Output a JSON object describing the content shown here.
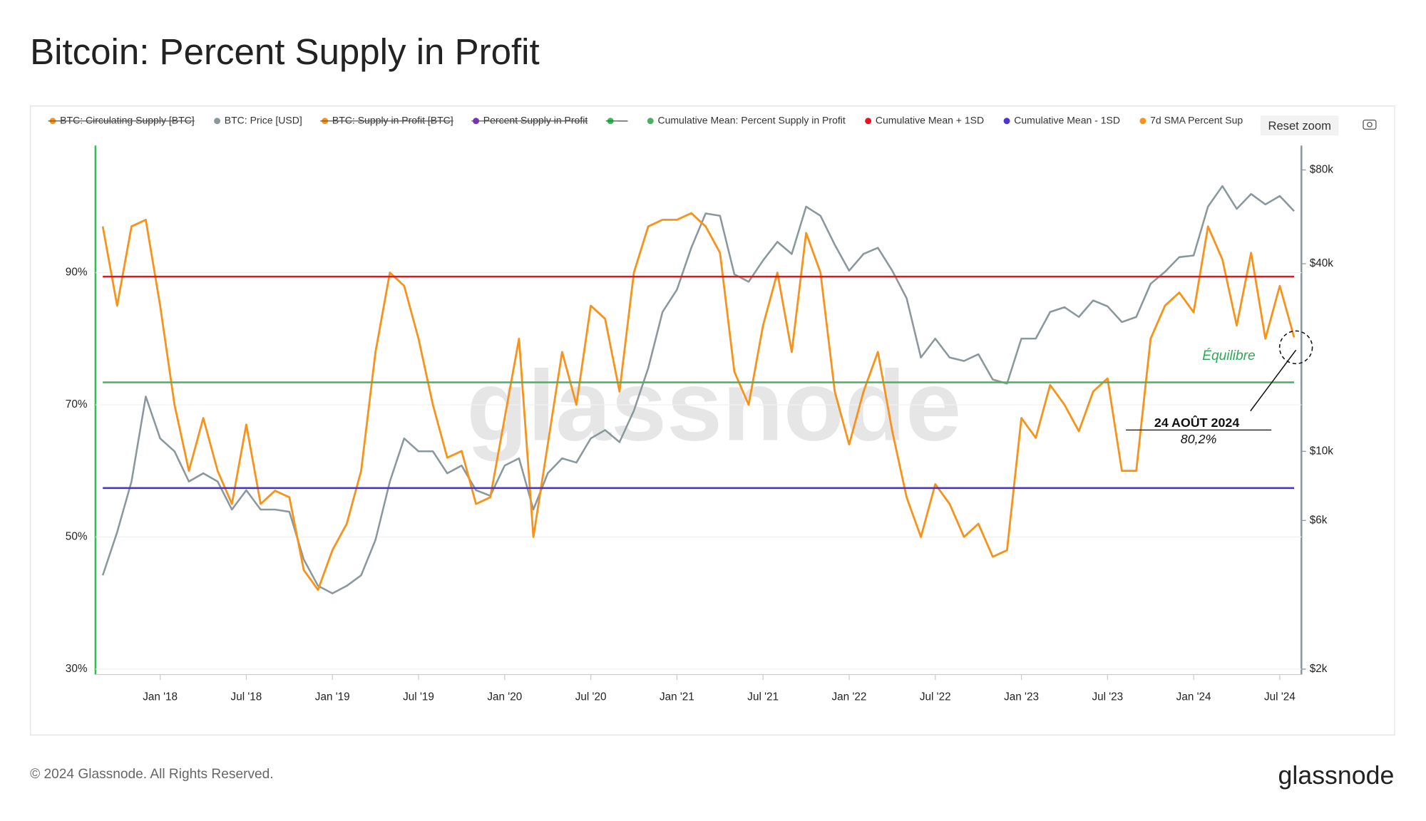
{
  "chart_data": {
    "type": "line",
    "title": "Bitcoin: Percent Supply in Profit",
    "watermark": "glassnode",
    "logo": "glassnode",
    "footer": "© 2024 Glassnode. All Rights Reserved.",
    "reset_zoom": "Reset zoom",
    "annotations": [
      "Équilibre",
      "24 AOÛT 2024",
      "80,2%"
    ],
    "x": [
      "2017-09",
      "2017-10",
      "2017-11",
      "2017-12",
      "2018-01",
      "2018-02",
      "2018-03",
      "2018-04",
      "2018-05",
      "2018-06",
      "2018-07",
      "2018-08",
      "2018-09",
      "2018-10",
      "2018-11",
      "2018-12",
      "2019-01",
      "2019-02",
      "2019-03",
      "2019-04",
      "2019-05",
      "2019-06",
      "2019-07",
      "2019-08",
      "2019-09",
      "2019-10",
      "2019-11",
      "2019-12",
      "2020-01",
      "2020-02",
      "2020-03",
      "2020-04",
      "2020-05",
      "2020-06",
      "2020-07",
      "2020-08",
      "2020-09",
      "2020-10",
      "2020-11",
      "2020-12",
      "2021-01",
      "2021-02",
      "2021-03",
      "2021-04",
      "2021-05",
      "2021-06",
      "2021-07",
      "2021-08",
      "2021-09",
      "2021-10",
      "2021-11",
      "2021-12",
      "2022-01",
      "2022-02",
      "2022-03",
      "2022-04",
      "2022-05",
      "2022-06",
      "2022-07",
      "2022-08",
      "2022-09",
      "2022-10",
      "2022-11",
      "2022-12",
      "2023-01",
      "2023-02",
      "2023-03",
      "2023-04",
      "2023-05",
      "2023-06",
      "2023-07",
      "2023-08",
      "2023-09",
      "2023-10",
      "2023-11",
      "2023-12",
      "2024-01",
      "2024-02",
      "2024-03",
      "2024-04",
      "2024-05",
      "2024-06",
      "2024-07",
      "2024-08"
    ],
    "xlim": [
      "2017-09",
      "2024-08"
    ],
    "xticks": [
      {
        "value": "2018-01",
        "label": "Jan '18"
      },
      {
        "value": "2018-07",
        "label": "Jul '18"
      },
      {
        "value": "2019-01",
        "label": "Jan '19"
      },
      {
        "value": "2019-07",
        "label": "Jul '19"
      },
      {
        "value": "2020-01",
        "label": "Jan '20"
      },
      {
        "value": "2020-07",
        "label": "Jul '20"
      },
      {
        "value": "2021-01",
        "label": "Jan '21"
      },
      {
        "value": "2021-07",
        "label": "Jul '21"
      },
      {
        "value": "2022-01",
        "label": "Jan '22"
      },
      {
        "value": "2022-07",
        "label": "Jul '22"
      },
      {
        "value": "2023-01",
        "label": "Jan '23"
      },
      {
        "value": "2023-07",
        "label": "Jul '23"
      },
      {
        "value": "2024-01",
        "label": "Jan '24"
      },
      {
        "value": "2024-07",
        "label": "Jul '24"
      }
    ],
    "ylim": [
      30,
      108
    ],
    "yticks": [
      {
        "value": 30,
        "label": "30%"
      },
      {
        "value": 50,
        "label": "50%"
      },
      {
        "value": 70,
        "label": "70%"
      },
      {
        "value": 90,
        "label": "90%"
      }
    ],
    "y2lim": [
      2000,
      90200
    ],
    "y2log": true,
    "y2ticks": [
      {
        "value": 2000,
        "label": "$2k"
      },
      {
        "value": 6000,
        "label": "$6k"
      },
      {
        "value": 10000,
        "label": "$10k"
      },
      {
        "value": 40000,
        "label": "$40k"
      },
      {
        "value": 80000,
        "label": "$80k"
      }
    ],
    "grid": true,
    "series": [
      {
        "name": "BTC: Circulating Supply [BTC]",
        "color": "#f7931a",
        "visible": false
      },
      {
        "name": "BTC: Price [USD]",
        "color": "#8a979c",
        "axis": "y2",
        "values": [
          4000,
          5500,
          8000,
          15000,
          11000,
          10000,
          8000,
          8500,
          8000,
          6500,
          7500,
          6500,
          6500,
          6400,
          4500,
          3700,
          3500,
          3700,
          4000,
          5200,
          8000,
          11000,
          10000,
          10000,
          8500,
          9000,
          7500,
          7200,
          9000,
          9500,
          6500,
          8500,
          9500,
          9200,
          11000,
          11700,
          10700,
          13500,
          18500,
          28000,
          33000,
          45000,
          58000,
          57000,
          37000,
          35000,
          41000,
          47000,
          43000,
          61000,
          57000,
          46000,
          38000,
          43000,
          45000,
          38000,
          31000,
          20000,
          23000,
          20000,
          19500,
          20500,
          17000,
          16500,
          23000,
          23000,
          28000,
          29000,
          27000,
          30500,
          29200,
          26000,
          27000,
          34500,
          37700,
          42000,
          42500,
          61000,
          71000,
          60000,
          67000,
          62000,
          66000,
          59000
        ]
      },
      {
        "name": "BTC: Supply in Profit [BTC]",
        "color": "#f7931a",
        "visible": false
      },
      {
        "name": "Percent Supply in Profit",
        "color": "#7b2fbe",
        "visible": false
      },
      {
        "name": "—",
        "color": "#2ec04f",
        "visible": false
      },
      {
        "name": "Cumulative Mean: Percent Supply in Profit",
        "color": "#4caf63",
        "value": 73.4
      },
      {
        "name": "Cumulative Mean + 1SD",
        "color": "#e8141a",
        "value": 89.4
      },
      {
        "name": "Cumulative Mean - 1SD",
        "color": "#4a35d4",
        "value": 57.4
      },
      {
        "name": "7d SMA Percent Sup",
        "color": "#f7931a",
        "values": [
          97,
          85,
          97,
          98,
          85,
          70,
          60,
          68,
          60,
          55,
          67,
          55,
          57,
          56,
          45,
          42,
          48,
          52,
          60,
          78,
          90,
          88,
          80,
          70,
          62,
          63,
          55,
          56,
          68,
          80,
          50,
          64,
          78,
          70,
          85,
          83,
          72,
          90,
          97,
          98,
          98,
          99,
          97,
          93,
          75,
          70,
          82,
          90,
          78,
          96,
          90,
          72,
          64,
          72,
          78,
          66,
          56,
          50,
          58,
          55,
          50,
          52,
          47,
          48,
          68,
          65,
          73,
          70,
          66,
          72,
          74,
          60,
          60,
          80,
          85,
          87,
          84,
          97,
          92,
          82,
          93,
          80,
          88,
          80.2
        ]
      }
    ]
  }
}
